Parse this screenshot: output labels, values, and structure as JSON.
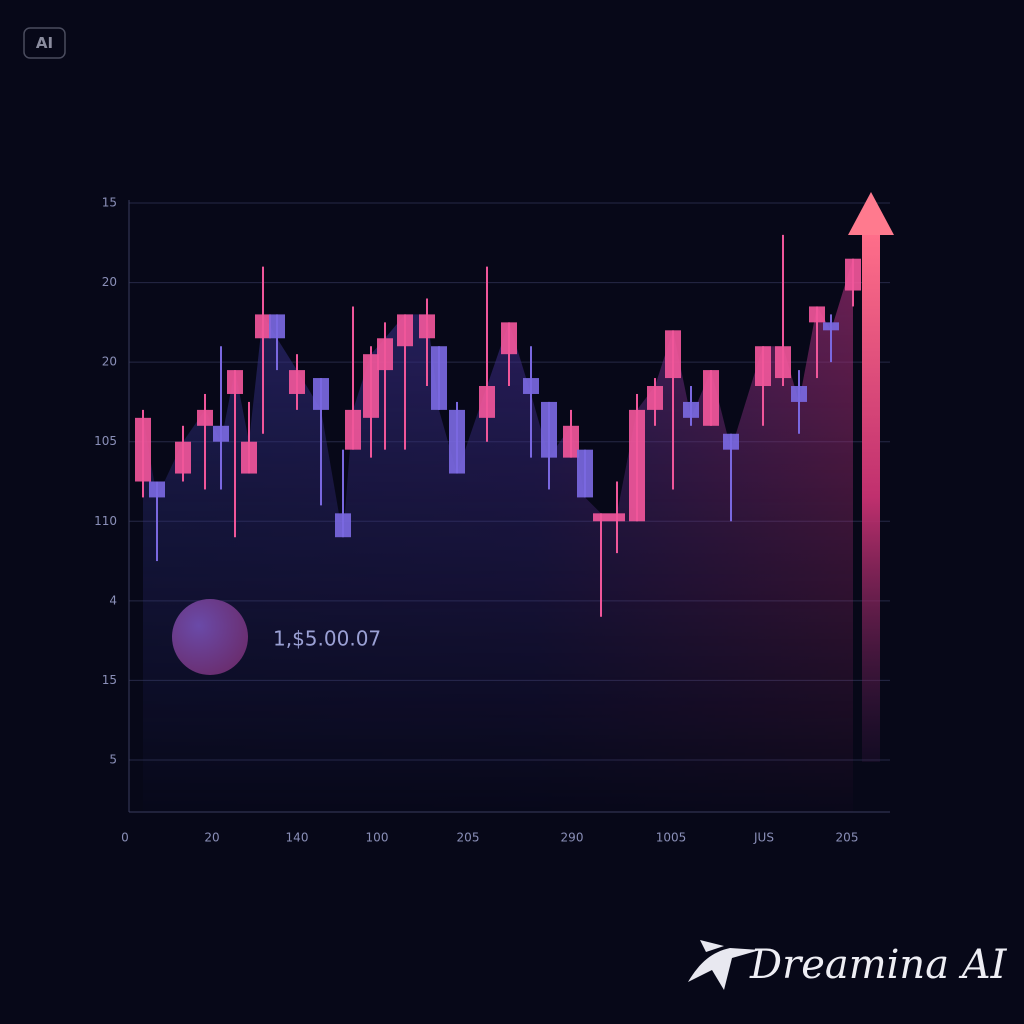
{
  "badge": "AI",
  "watermark": "Dreamina AI",
  "chart_data": {
    "type": "candlestick",
    "annotation": "1,$5.00.07",
    "x": [
      0.9,
      1.6,
      2.9,
      4.0,
      4.8,
      5.5,
      6.2,
      6.9,
      7.6,
      8.6,
      9.8,
      10.9,
      11.4,
      12.3,
      13.0,
      14.0,
      15.1,
      15.7,
      16.6,
      18.1,
      19.2,
      20.3,
      21.2,
      22.3,
      23.0,
      23.8,
      24.6,
      25.6,
      26.5,
      27.4,
      28.3,
      29.3,
      30.3,
      31.9,
      32.9,
      33.7,
      34.6,
      35.3,
      36.4
    ],
    "open": [
      3.5,
      3.5,
      3.6,
      4.2,
      4.2,
      4.6,
      3.6,
      5.3,
      5.6,
      4.6,
      4.8,
      3.1,
      3.9,
      4.3,
      4.9,
      5.2,
      5.3,
      5.2,
      4.4,
      4.3,
      5.1,
      4.8,
      4.5,
      3.8,
      3.9,
      3.0,
      3.0,
      3.0,
      4.4,
      4.8,
      4.5,
      4.2,
      4.1,
      4.7,
      4.8,
      4.7,
      5.5,
      5.5,
      5.9
    ],
    "close": [
      4.3,
      3.3,
      4.0,
      4.4,
      4.0,
      4.9,
      4.0,
      5.6,
      5.3,
      4.9,
      4.4,
      2.8,
      4.4,
      5.1,
      5.3,
      5.6,
      5.6,
      4.4,
      3.6,
      4.7,
      5.5,
      4.6,
      3.8,
      4.2,
      3.3,
      3.1,
      3.1,
      4.4,
      4.7,
      5.4,
      4.3,
      4.9,
      3.9,
      5.2,
      5.2,
      4.5,
      5.7,
      5.4,
      6.3
    ],
    "high": [
      4.4,
      3.5,
      4.2,
      4.6,
      5.2,
      4.9,
      4.5,
      6.2,
      5.6,
      5.1,
      4.8,
      3.9,
      5.7,
      5.2,
      5.5,
      5.6,
      5.8,
      5.2,
      4.5,
      6.2,
      5.5,
      5.2,
      4.5,
      4.4,
      3.9,
      3.1,
      3.5,
      4.6,
      4.8,
      5.4,
      4.7,
      4.9,
      4.1,
      5.2,
      6.6,
      4.9,
      5.7,
      5.6,
      6.3
    ],
    "low": [
      3.3,
      2.5,
      3.5,
      3.4,
      3.4,
      2.8,
      3.6,
      4.1,
      4.9,
      4.4,
      3.2,
      2.8,
      3.9,
      3.8,
      3.9,
      3.9,
      4.7,
      4.4,
      3.6,
      4.0,
      4.7,
      3.8,
      3.4,
      3.8,
      3.3,
      1.8,
      2.6,
      3.0,
      4.2,
      3.4,
      4.2,
      4.2,
      3.0,
      4.2,
      4.7,
      4.1,
      4.8,
      5.0,
      5.7
    ],
    "up_color": "#f0569a",
    "down_color": "#7a68e0",
    "xlim": [
      0,
      38.25
    ],
    "ylim": [
      -0.65,
      7
    ],
    "xticks": [
      {
        "value": 0,
        "label": "0"
      },
      {
        "value": 4.35,
        "label": "20"
      },
      {
        "value": 8.6,
        "label": "140"
      },
      {
        "value": 12.6,
        "label": "100"
      },
      {
        "value": 17.15,
        "label": "205"
      },
      {
        "value": 22.35,
        "label": "290"
      },
      {
        "value": 27.3,
        "label": "1005"
      },
      {
        "value": 31.95,
        "label": "JUS"
      },
      {
        "value": 36.1,
        "label": "205"
      }
    ],
    "yticks": [
      {
        "value": 7,
        "label": "15"
      },
      {
        "value": 6,
        "label": "20"
      },
      {
        "value": 5,
        "label": "20"
      },
      {
        "value": 4,
        "label": "105"
      },
      {
        "value": 3,
        "label": "110"
      },
      {
        "value": 2,
        "label": "4"
      },
      {
        "value": 1,
        "label": "15"
      },
      {
        "value": 0,
        "label": "5"
      }
    ],
    "grid": true
  }
}
